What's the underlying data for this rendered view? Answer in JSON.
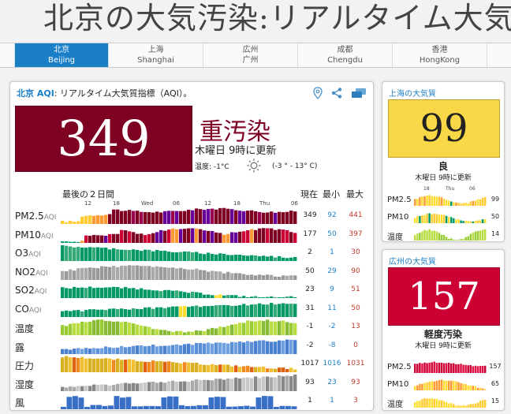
{
  "page_title": "北京の大気汚染:リアルタイム大気",
  "tabs": [
    {
      "local": "北京",
      "latin": "Beijing",
      "active": true
    },
    {
      "local": "上海",
      "latin": "Shanghai",
      "active": false
    },
    {
      "local": "広州",
      "latin": "广州",
      "active": false
    },
    {
      "local": "成都",
      "latin": "Chengdu",
      "active": false
    },
    {
      "local": "香港",
      "latin": "HongKong",
      "active": false
    }
  ],
  "main": {
    "city": "北京 AQI",
    "description": ": リアルタイム大気質指標（AQI）。",
    "aqi": "349",
    "aqi_color": "#7e0023",
    "status": "重汚染",
    "update": "木曜日 9時に更新",
    "temp_label": "温度:",
    "temp_value": "-1°C",
    "temp_range": "(-3 ° - 13° C)",
    "icons": [
      "location-pin-icon",
      "share-icon",
      "windows-icon"
    ],
    "chart_head": "最後の２日間",
    "col_current": "現在",
    "col_min": "最小",
    "col_max": "最大",
    "ticks": [
      "12",
      "18",
      "Wed",
      "06",
      "12",
      "18",
      "Thu",
      "06"
    ],
    "rows": [
      {
        "label": "PM2.5",
        "unit": "AQI",
        "current": "349",
        "min": "92",
        "max": "441"
      },
      {
        "label": "PM10",
        "unit": "AQI",
        "current": "177",
        "min": "50",
        "max": "397"
      },
      {
        "label": "O3",
        "unit": "AQI",
        "current": "2",
        "min": "1",
        "max": "30"
      },
      {
        "label": "NO2",
        "unit": "AQI",
        "current": "50",
        "min": "29",
        "max": "90"
      },
      {
        "label": "SO2",
        "unit": "AQI",
        "current": "23",
        "min": "9",
        "max": "51"
      },
      {
        "label": "CO",
        "unit": "AQI",
        "current": "31",
        "min": "11",
        "max": "50"
      },
      {
        "label": "温度",
        "unit": "",
        "current": "-1",
        "min": "-2",
        "max": "13"
      },
      {
        "label": "露",
        "unit": "",
        "current": "-2",
        "min": "-8",
        "max": "0"
      },
      {
        "label": "圧力",
        "unit": "",
        "current": "1017",
        "min": "1016",
        "max": "1031"
      },
      {
        "label": "湿度",
        "unit": "",
        "current": "93",
        "min": "23",
        "max": "93"
      },
      {
        "label": "風",
        "unit": "",
        "current": "1",
        "min": "1",
        "max": "3"
      }
    ]
  },
  "shanghai": {
    "title": "上海の大気質",
    "aqi": "99",
    "aqi_color": "#f9d847",
    "status": "良",
    "update": "木曜日 9時に更新",
    "ticks": [
      "18",
      "Thu",
      "06"
    ],
    "rows": [
      {
        "label": "PM2.5",
        "value": "99"
      },
      {
        "label": "PM10",
        "value": "50"
      },
      {
        "label": "温度",
        "value": "14"
      }
    ]
  },
  "guangzhou": {
    "title": "広州の大気質",
    "aqi": "157",
    "aqi_color": "#cc0033",
    "status": "軽度汚染",
    "update": "木曜日 9時に更新",
    "rows": [
      {
        "label": "PM2.5",
        "value": "157"
      },
      {
        "label": "PM10",
        "value": "65"
      },
      {
        "label": "温度",
        "value": "15"
      }
    ]
  }
}
